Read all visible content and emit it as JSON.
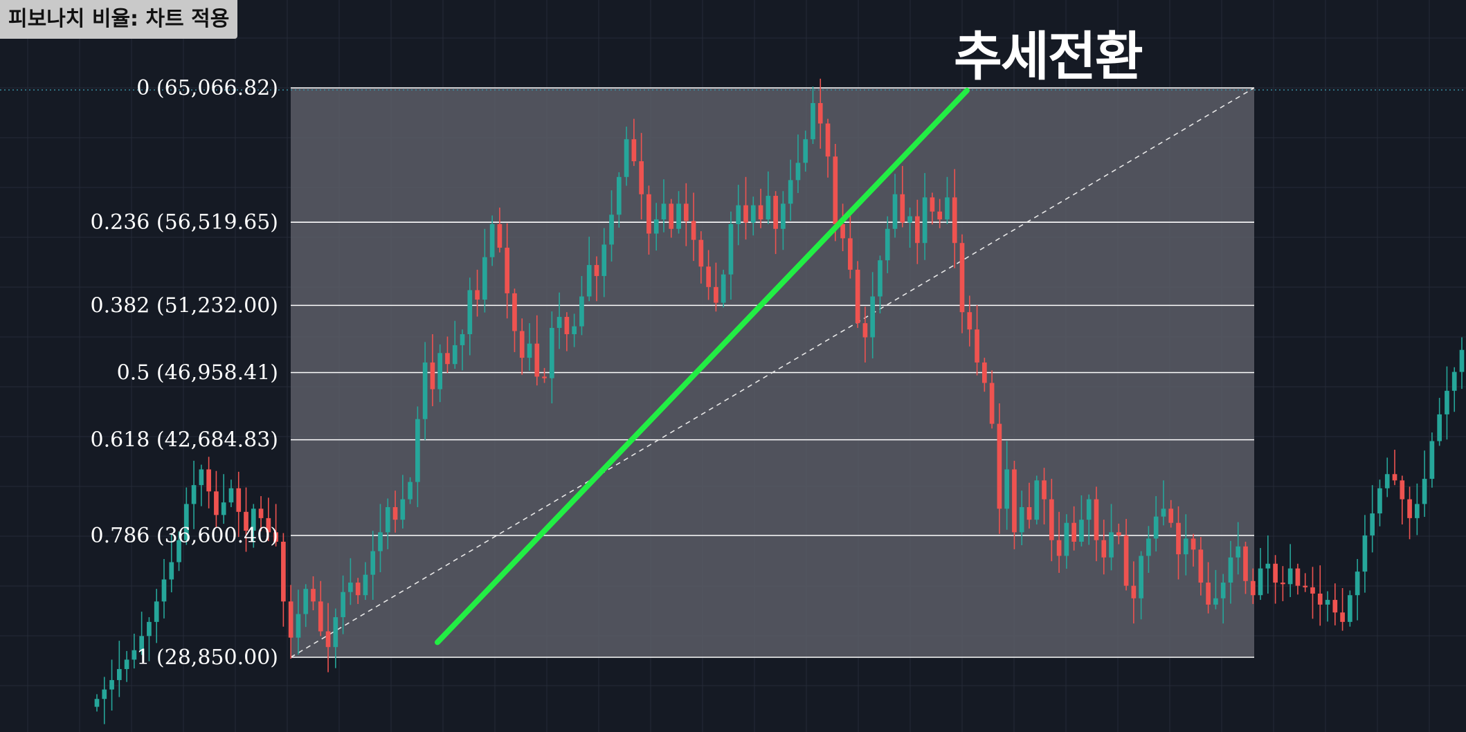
{
  "caption": "피보나치 비율: 차트 적용",
  "annotation": "추세전환",
  "colors": {
    "background": "#151a24",
    "fib_zone": "#5a5d66",
    "up_candle": "#26a69a",
    "down_candle": "#ef5350",
    "trend_line": "#22ee44",
    "level_line": "#ffffff"
  },
  "chart_data": {
    "type": "candlestick",
    "y_range": [
      26000,
      67000
    ],
    "grid": true,
    "fib_levels": [
      {
        "ratio": "0",
        "price": 65066.82,
        "label": "0 (65,066.82)"
      },
      {
        "ratio": "0.236",
        "price": 56519.65,
        "label": "0.236 (56,519.65)"
      },
      {
        "ratio": "0.382",
        "price": 51232.0,
        "label": "0.382 (51,232.00)"
      },
      {
        "ratio": "0.5",
        "price": 46958.41,
        "label": "0.5 (46,958.41)"
      },
      {
        "ratio": "0.618",
        "price": 42684.83,
        "label": "0.618 (42,684.83)"
      },
      {
        "ratio": "0.786",
        "price": 36600.4,
        "label": "0.786 (36,600.40)"
      },
      {
        "ratio": "1",
        "price": 28850.0,
        "label": "1 (28,850.00)"
      }
    ],
    "trend_line": {
      "from": [
        43000,
        29800
      ],
      "to": [
        64900,
        64900
      ]
    },
    "fib_diagonal": {
      "from": [
        28850,
        28850
      ],
      "to": [
        65066.82,
        65066.82
      ]
    },
    "closes": [
      26200,
      26800,
      27400,
      28100,
      28700,
      29300,
      30200,
      31100,
      32400,
      33800,
      34900,
      36300,
      38600,
      39800,
      40800,
      39400,
      37900,
      38700,
      39600,
      38100,
      36900,
      38300,
      37700,
      36800,
      36200,
      32400,
      30100,
      31600,
      33200,
      32400,
      30500,
      29500,
      31400,
      33000,
      33600,
      32800,
      34100,
      35600,
      36800,
      38400,
      37600,
      38900,
      40000,
      44000,
      47600,
      45900,
      48200,
      47500,
      48700,
      49400,
      52200,
      51600,
      54300,
      56400,
      54900,
      52000,
      49600,
      47900,
      48800,
      46700,
      46600,
      49800,
      50500,
      49400,
      49900,
      51800,
      53800,
      53100,
      55100,
      57000,
      59400,
      61800,
      60400,
      58300,
      55800,
      56700,
      57700,
      56100,
      57700,
      56600,
      55400,
      53700,
      52400,
      51400,
      53200,
      56400,
      57600,
      56500,
      57600,
      56700,
      58200,
      56100,
      57700,
      59200,
      60300,
      61800,
      64100,
      62800,
      60700,
      56400,
      55500,
      53500,
      50100,
      49200,
      51800,
      54100,
      56100,
      58300,
      56500,
      56900,
      55200,
      58100,
      57200,
      56700,
      58100,
      55200,
      50800,
      49700,
      47600,
      46300,
      43700,
      38300,
      40800,
      36800,
      38400,
      37600,
      40100,
      38900,
      36300,
      35300,
      37400,
      36200,
      37600,
      38900,
      36300,
      35200,
      36800,
      36600,
      33400,
      32600,
      35300,
      36400,
      37800,
      38300,
      37400,
      35400,
      36400,
      35700,
      33600,
      32200,
      32600,
      33600,
      35200,
      35900,
      33700,
      32800,
      34500,
      34800,
      33600,
      33500,
      34500,
      33400,
      33300,
      32900,
      32200,
      32500,
      31700,
      31100,
      32800,
      34300,
      36600,
      38000,
      39600,
      40500,
      40100,
      38900,
      37700,
      38600,
      40200,
      42600,
      44300,
      45800,
      47000,
      48400
    ]
  }
}
